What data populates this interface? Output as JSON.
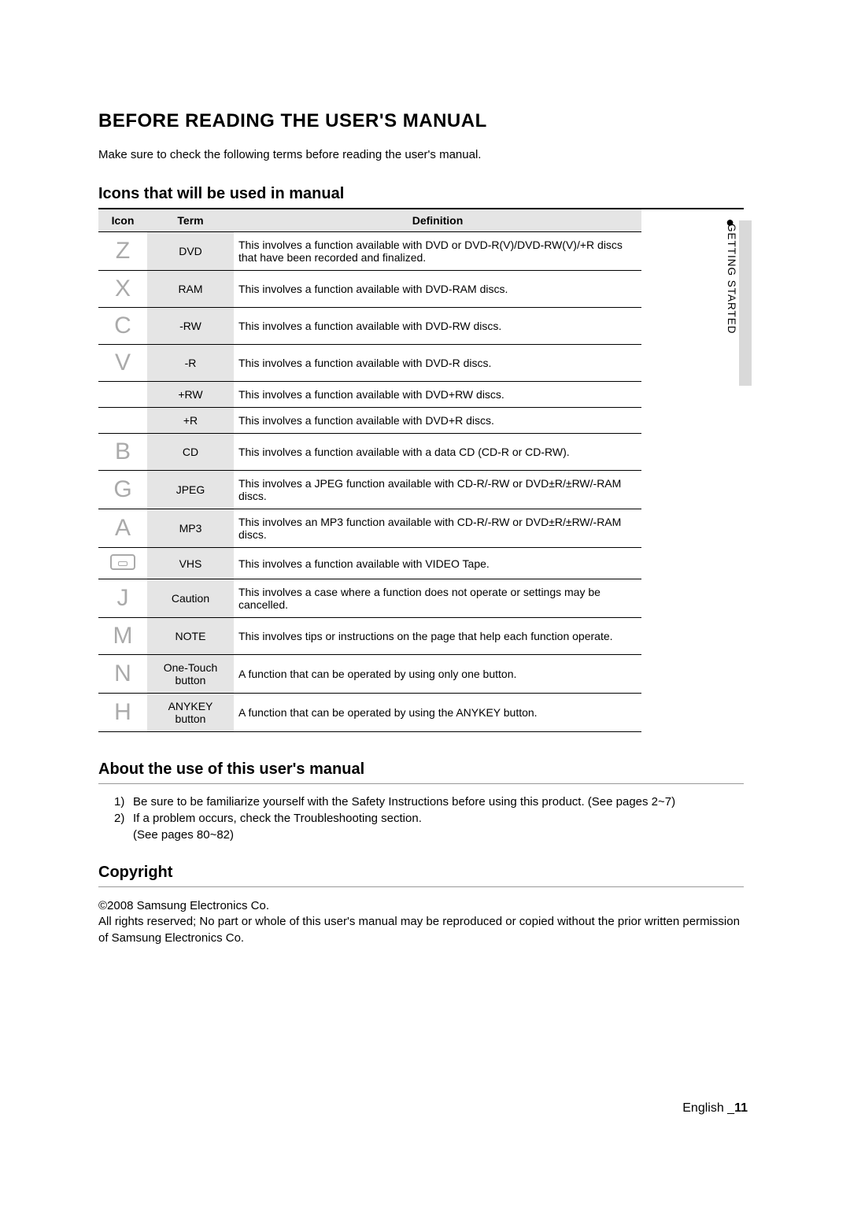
{
  "title": "BEFORE READING THE USER'S MANUAL",
  "intro": "Make sure to check the following terms before reading the user's manual.",
  "icons_heading": "Icons that will be used in manual",
  "table": {
    "headers": {
      "icon": "Icon",
      "term": "Term",
      "definition": "Definition"
    },
    "rows": [
      {
        "glyph": "Z",
        "term": "DVD",
        "def": "This involves a function available with DVD or DVD-R(V)/DVD-RW(V)/+R discs that have been recorded and finalized."
      },
      {
        "glyph": "X",
        "term": "RAM",
        "def": "This involves a function available with DVD-RAM discs."
      },
      {
        "glyph": "C",
        "term": "-RW",
        "def": "This involves a function available with DVD-RW discs."
      },
      {
        "glyph": "V",
        "term": "-R",
        "def": "This involves a function available with DVD-R discs."
      },
      {
        "glyph": "",
        "term": "+RW",
        "def": "This involves a function available with DVD+RW discs."
      },
      {
        "glyph": "",
        "term": "+R",
        "def": "This involves a function available with DVD+R discs."
      },
      {
        "glyph": "B",
        "term": "CD",
        "def": "This involves a function available with a data CD (CD-R or CD-RW)."
      },
      {
        "glyph": "G",
        "term": "JPEG",
        "def": "This involves a JPEG function available with CD-R/-RW or DVD±R/±RW/-RAM discs."
      },
      {
        "glyph": "A",
        "term": "MP3",
        "def": "This involves an MP3 function available with CD-R/-RW or DVD±R/±RW/-RAM discs."
      },
      {
        "glyph": "VHSBOX",
        "term": "VHS",
        "def": "This involves a function available with VIDEO Tape."
      },
      {
        "glyph": "J",
        "term": "Caution",
        "def": "This involves a case where a function does not operate or settings may be cancelled."
      },
      {
        "glyph": "M",
        "term": "NOTE",
        "def": "This involves tips or instructions on the page that help each function operate."
      },
      {
        "glyph": "N",
        "term": "One-Touch button",
        "def": "A function that can be operated by using only one button."
      },
      {
        "glyph": "H",
        "term": "ANYKEY button",
        "def": "A function that can be operated by using the ANYKEY button."
      }
    ]
  },
  "about": {
    "heading": "About the use of this user's manual",
    "items": [
      "Be sure to be familiarize yourself with the Safety Instructions before using this product. (See pages 2~7)",
      "If a problem occurs, check the Troubleshooting section.",
      "(See pages 80~82)"
    ]
  },
  "copyright": {
    "heading": "Copyright",
    "line1": "©2008 Samsung Electronics Co.",
    "line2": "All rights reserved; No part or whole of this user's manual may be reproduced or copied without the prior written permission of Samsung Electronics Co."
  },
  "side": {
    "bullet": "●",
    "label": "GETTING STARTED"
  },
  "footer": {
    "lang": "English _",
    "page": "11"
  }
}
